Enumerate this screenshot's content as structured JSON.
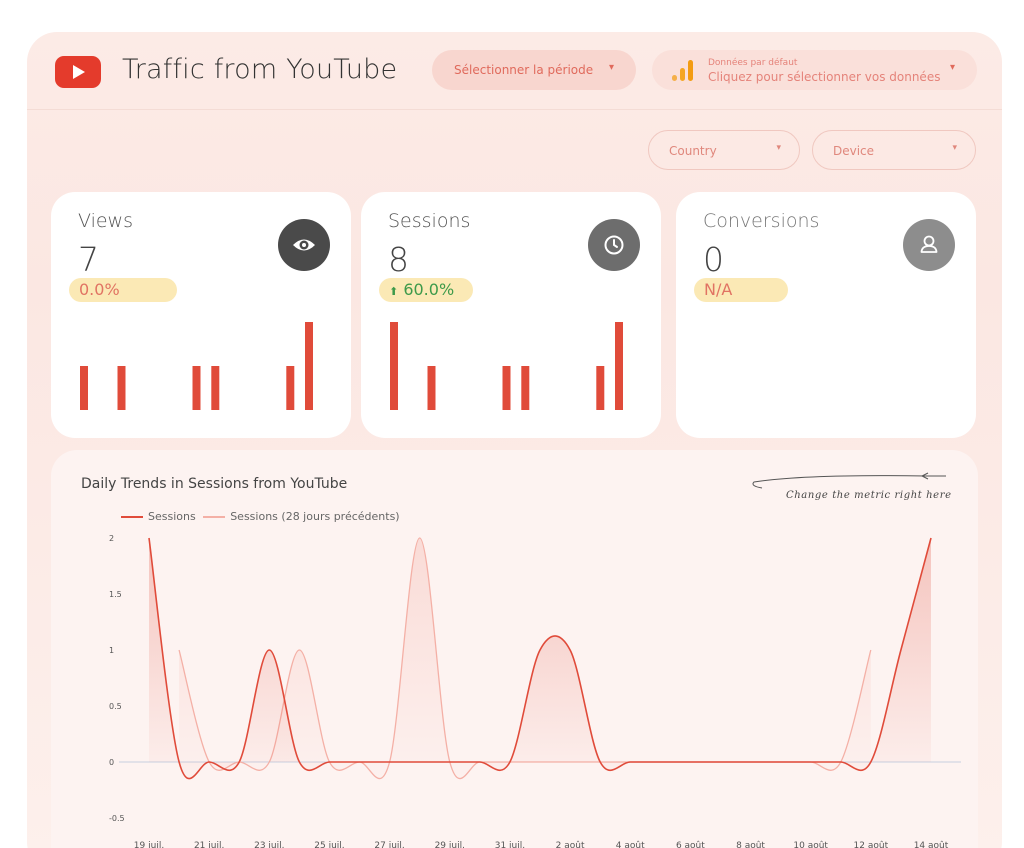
{
  "header": {
    "title": "Traffic from YouTube",
    "period_label": "Sélectionner la période",
    "data_top": "Données par défaut",
    "data_bottom": "Cliquez pour sélectionner vos données"
  },
  "filters": {
    "country_label": "Country",
    "device_label": "Device"
  },
  "caret": "▾",
  "cards": [
    {
      "label": "Views",
      "value": "7",
      "change": "0.0%",
      "icon": "eye-icon",
      "sparkline": [
        1,
        0,
        1,
        0,
        0,
        0,
        1,
        1,
        0,
        0,
        0,
        1,
        2
      ]
    },
    {
      "label": "Sessions",
      "value": "8",
      "change": "60.0%",
      "change_arrow": "⬆",
      "icon": "clock-icon",
      "sparkline": [
        2,
        0,
        1,
        0,
        0,
        0,
        1,
        1,
        0,
        0,
        0,
        1,
        2
      ]
    },
    {
      "label": "Conversions",
      "value": "0",
      "change": "N/A",
      "icon": "user-icon",
      "sparkline": []
    }
  ],
  "colors": {
    "accent": "#e04b3a",
    "accent_light": "#f4b0a6",
    "badge_bg": "#fbe9b5",
    "icon_dark": "#4a4a4a",
    "icon_mid": "#6d6d6d",
    "icon_light": "#8d8d8d"
  },
  "annotation": "Change the metric right here",
  "chart_data": {
    "type": "line",
    "title": "Daily Trends in Sessions from YouTube",
    "x": [
      "19 juil.",
      "20 juil.",
      "21 juil.",
      "22 juil.",
      "23 juil.",
      "24 juil.",
      "25 juil.",
      "26 juil.",
      "27 juil.",
      "28 juil.",
      "29 juil.",
      "30 juil.",
      "31 juil.",
      "1 août",
      "2 août",
      "3 août",
      "4 août",
      "5 août",
      "6 août",
      "7 août",
      "8 août",
      "9 août",
      "10 août",
      "11 août",
      "12 août",
      "13 août",
      "14 août"
    ],
    "tick_labels": [
      "19 juil.",
      "21 juil.",
      "23 juil.",
      "25 juil.",
      "27 juil.",
      "29 juil.",
      "31 juil.",
      "2 août",
      "4 août",
      "6 août",
      "8 août",
      "10 août",
      "12 août",
      "14 août"
    ],
    "series": [
      {
        "name": "Sessions",
        "values": [
          2,
          0,
          0,
          0,
          1,
          0,
          0,
          0,
          0,
          0,
          0,
          0,
          0,
          1,
          1,
          0,
          0,
          0,
          0,
          0,
          0,
          0,
          0,
          0,
          0,
          1,
          2
        ]
      },
      {
        "name": "Sessions (28 jours précédents)",
        "values": [
          null,
          1,
          0,
          0,
          0,
          1,
          0,
          0,
          0,
          2,
          0,
          0,
          0,
          0,
          0,
          0,
          0,
          0,
          0,
          0,
          0,
          0,
          0,
          0,
          1,
          null,
          null
        ]
      }
    ],
    "y_ticks": [
      "2",
      "1.5",
      "1",
      "0.5",
      "0",
      "-0.5"
    ],
    "ylim": [
      -0.5,
      2
    ],
    "legend": "top-left",
    "grid": false
  }
}
